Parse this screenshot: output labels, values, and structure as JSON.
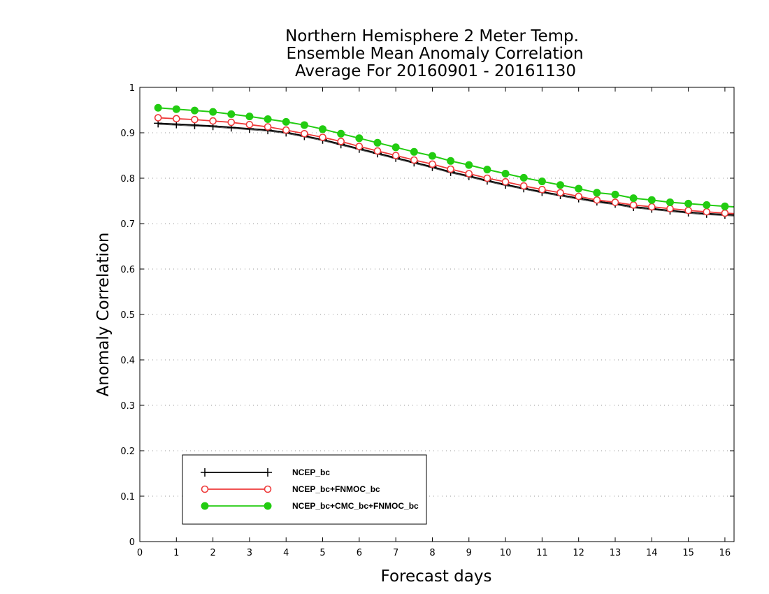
{
  "chart_data": {
    "type": "line",
    "title_lines": [
      "Northern Hemisphere 2 Meter Temp.",
      "Ensemble Mean Anomaly Correlation",
      "Average For 20160901 - 20161130"
    ],
    "xlabel": "Forecast days",
    "ylabel": "Anomaly Correlation",
    "xlim": [
      0,
      16.25
    ],
    "ylim": [
      0,
      1
    ],
    "xticks": [
      "0",
      "1",
      "2",
      "3",
      "4",
      "5",
      "6",
      "7",
      "8",
      "9",
      "10",
      "11",
      "12",
      "13",
      "14",
      "15",
      "16"
    ],
    "yticks": [
      "0",
      "0.1",
      "0.2",
      "0.3",
      "0.4",
      "0.5",
      "0.6",
      "0.7",
      "0.8",
      "0.9",
      "1"
    ],
    "grid": "horizontal dotted",
    "legend_position": "bottom-left",
    "x": [
      0.5,
      1,
      1.5,
      2,
      2.5,
      3,
      3.5,
      4,
      4.5,
      5,
      5.5,
      6,
      6.5,
      7,
      7.5,
      8,
      8.5,
      9,
      9.5,
      10,
      10.5,
      11,
      11.5,
      12,
      12.5,
      13,
      13.5,
      14,
      14.5,
      15,
      15.5,
      16,
      16.25
    ],
    "series": [
      {
        "name": "NCEP_bc",
        "color": "#000000",
        "marker": "plus",
        "values": [
          0.921,
          0.919,
          0.917,
          0.915,
          0.912,
          0.909,
          0.906,
          0.901,
          0.893,
          0.885,
          0.875,
          0.865,
          0.855,
          0.845,
          0.835,
          0.825,
          0.814,
          0.805,
          0.795,
          0.786,
          0.778,
          0.77,
          0.763,
          0.756,
          0.749,
          0.744,
          0.737,
          0.733,
          0.729,
          0.725,
          0.722,
          0.72,
          0.719
        ]
      },
      {
        "name": "NCEP_bc+FNMOC_bc",
        "color": "#ee3a3a",
        "marker": "open-circle",
        "values": [
          0.933,
          0.931,
          0.929,
          0.926,
          0.923,
          0.918,
          0.913,
          0.906,
          0.898,
          0.89,
          0.881,
          0.87,
          0.86,
          0.85,
          0.84,
          0.831,
          0.82,
          0.81,
          0.8,
          0.792,
          0.783,
          0.775,
          0.768,
          0.76,
          0.752,
          0.747,
          0.741,
          0.737,
          0.733,
          0.729,
          0.726,
          0.723,
          0.722
        ]
      },
      {
        "name": "NCEP_bc+CMC_bc+FNMOC_bc",
        "color": "#22cc11",
        "marker": "filled-circle",
        "values": [
          0.955,
          0.952,
          0.949,
          0.946,
          0.941,
          0.936,
          0.93,
          0.924,
          0.917,
          0.908,
          0.898,
          0.888,
          0.878,
          0.868,
          0.858,
          0.849,
          0.838,
          0.829,
          0.819,
          0.81,
          0.801,
          0.793,
          0.785,
          0.777,
          0.768,
          0.764,
          0.756,
          0.752,
          0.747,
          0.744,
          0.741,
          0.738,
          0.737
        ]
      }
    ]
  }
}
